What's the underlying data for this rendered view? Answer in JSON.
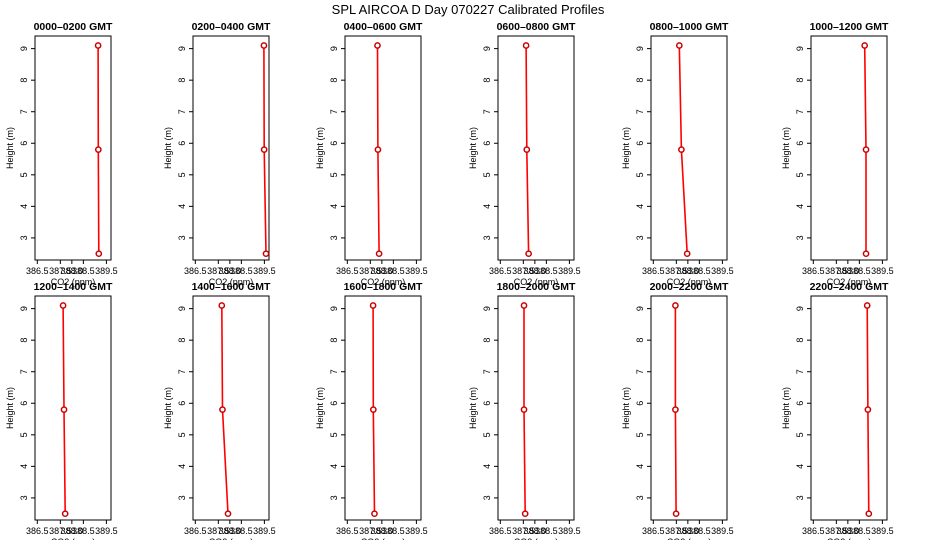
{
  "chart_data": {
    "type": "line",
    "title": "SPL AIRCOA D  Day 070227  Calibrated Profiles",
    "xlabel": "CO2 (ppm)",
    "ylabel": "Height (m)",
    "xlim": [
      386.4,
      389.7
    ],
    "ylim": [
      2.3,
      9.4
    ],
    "xticks": [
      386.5,
      387.5,
      388.0,
      388.5,
      389.5
    ],
    "xtick_labels": [
      "386.5",
      "387.5",
      "388.0",
      "388.5",
      "389.5"
    ],
    "yticks": [
      3,
      4,
      5,
      6,
      7,
      8,
      9
    ],
    "ytick_labels": [
      "3",
      "4",
      "5",
      "6",
      "7",
      "8",
      "9"
    ],
    "line_color": "#ff0000",
    "marker_color": "#cc0000",
    "grid": false,
    "panels": [
      {
        "title": "0000–0200 GMT",
        "heights": [
          2.5,
          5.8,
          9.1
        ],
        "values": [
          389.17,
          389.15,
          389.14
        ]
      },
      {
        "title": "0200–0400 GMT",
        "heights": [
          2.5,
          5.8,
          9.1
        ],
        "values": [
          389.57,
          389.49,
          389.48
        ]
      },
      {
        "title": "0400–0600 GMT",
        "heights": [
          2.5,
          5.8,
          9.1
        ],
        "values": [
          387.88,
          387.83,
          387.81
        ]
      },
      {
        "title": "0600–0800 GMT",
        "heights": [
          2.5,
          5.8,
          9.1
        ],
        "values": [
          387.73,
          387.65,
          387.62
        ]
      },
      {
        "title": "0800–1000 GMT",
        "heights": [
          2.5,
          5.8,
          9.1
        ],
        "values": [
          387.97,
          387.72,
          387.63
        ]
      },
      {
        "title": "1000–1200 GMT",
        "heights": [
          2.5,
          5.8,
          9.1
        ],
        "values": [
          388.79,
          388.79,
          388.73
        ]
      },
      {
        "title": "1200–1400 GMT",
        "heights": [
          2.5,
          5.8,
          9.1
        ],
        "values": [
          387.71,
          387.66,
          387.62
        ]
      },
      {
        "title": "1400–1600 GMT",
        "heights": [
          2.5,
          5.8,
          9.1
        ],
        "values": [
          387.92,
          387.68,
          387.65
        ]
      },
      {
        "title": "1600–1800 GMT",
        "heights": [
          2.5,
          5.8,
          9.1
        ],
        "values": [
          387.68,
          387.63,
          387.62
        ]
      },
      {
        "title": "1800–2000 GMT",
        "heights": [
          2.5,
          5.8,
          9.1
        ],
        "values": [
          387.58,
          387.53,
          387.53
        ]
      },
      {
        "title": "2000–2200 GMT",
        "heights": [
          2.5,
          5.8,
          9.1
        ],
        "values": [
          387.49,
          387.46,
          387.46
        ]
      },
      {
        "title": "2200–2400 GMT",
        "heights": [
          2.5,
          5.8,
          9.1
        ],
        "values": [
          388.91,
          388.87,
          388.84
        ]
      }
    ]
  }
}
